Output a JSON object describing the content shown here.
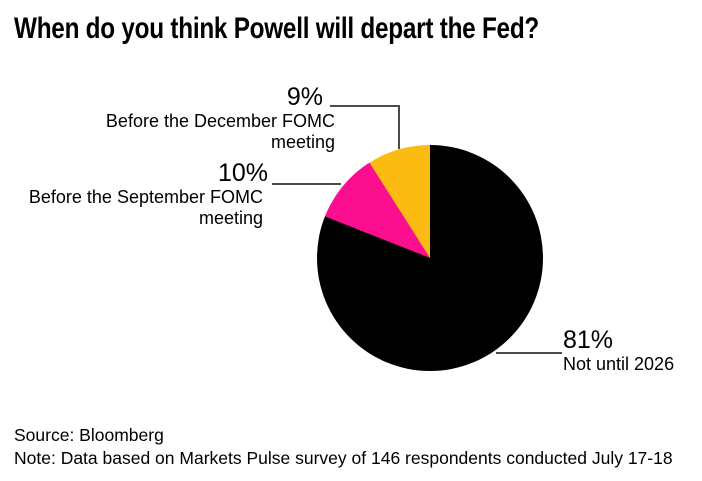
{
  "chart_data": {
    "type": "pie",
    "title": "When do you think Powell will depart the Fed?",
    "start_angle_deg": 0,
    "direction": "clockwise",
    "legend_position": "callout-labels",
    "slices": [
      {
        "label": "Not until 2026",
        "value_pct": 81,
        "pct_label": "81%",
        "color": "#000000"
      },
      {
        "label": "Before the September FOMC meeting",
        "value_pct": 10,
        "pct_label": "10%",
        "color": "#fb0f8e"
      },
      {
        "label": "Before the December FOMC meeting",
        "value_pct": 9,
        "pct_label": "9%",
        "color": "#fcbb13"
      }
    ]
  },
  "callouts": {
    "december": {
      "pct": "9%",
      "line1": "Before the December FOMC",
      "line2": "meeting"
    },
    "september": {
      "pct": "10%",
      "line1": "Before the September FOMC",
      "line2": "meeting"
    },
    "not_until_2026": {
      "pct": "81%",
      "line1": "Not until 2026"
    }
  },
  "footer": {
    "source": "Source: Bloomberg",
    "note": "Note: Data based on Markets Pulse survey of 146 respondents conducted July 17-18"
  },
  "colors": {
    "background": "#ffffff",
    "text": "#000000",
    "leader_line": "#4b4b4b",
    "slice_black": "#000000",
    "slice_pink": "#fb0f8e",
    "slice_yellow": "#fcbb13"
  }
}
